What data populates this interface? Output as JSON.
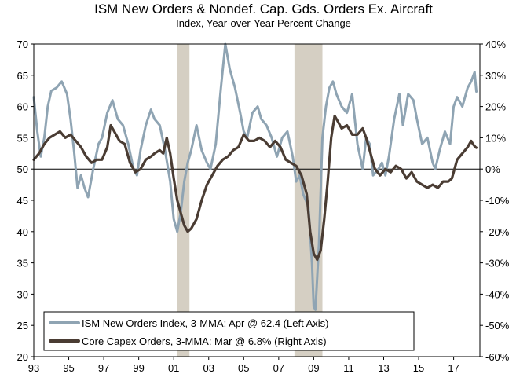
{
  "chart_data": {
    "type": "line",
    "title": "ISM New Orders & Nondef. Cap. Gds. Orders Ex. Aircraft",
    "subtitle": "Index, Year-over-Year Percent Change",
    "x_ticks": [
      "93",
      "95",
      "97",
      "99",
      "01",
      "03",
      "05",
      "07",
      "09",
      "11",
      "13",
      "15",
      "17"
    ],
    "x_range": [
      1993,
      2018.5
    ],
    "left_axis": {
      "range": [
        20,
        70
      ],
      "ticks": [
        "20",
        "25",
        "30",
        "35",
        "40",
        "45",
        "50",
        "55",
        "60",
        "65",
        "70"
      ]
    },
    "right_axis": {
      "range": [
        -60,
        40
      ],
      "ticks": [
        "-60%",
        "-50%",
        "-40%",
        "-30%",
        "-20%",
        "-10%",
        "0%",
        "10%",
        "20%",
        "30%",
        "40%"
      ]
    },
    "reference_line_left": 50,
    "recessions": [
      [
        2001.2,
        2001.9
      ],
      [
        2007.9,
        2009.5
      ]
    ],
    "legend": [
      "ISM New Orders Index, 3-MMA: Apr @ 62.4 (Left Axis)",
      "Core Capex Orders, 3-MMA: Mar @ 6.8% (Right Axis)"
    ],
    "series": [
      {
        "name": "ISM New Orders Index, 3-MMA",
        "axis": "left",
        "color": "#8fa4b3",
        "points": [
          [
            1993.0,
            61.5
          ],
          [
            1993.2,
            56
          ],
          [
            1993.4,
            52
          ],
          [
            1993.6,
            55
          ],
          [
            1993.8,
            60
          ],
          [
            1994.0,
            62.5
          ],
          [
            1994.3,
            63
          ],
          [
            1994.6,
            64
          ],
          [
            1994.9,
            62
          ],
          [
            1995.1,
            58
          ],
          [
            1995.3,
            53
          ],
          [
            1995.5,
            47
          ],
          [
            1995.7,
            49
          ],
          [
            1995.9,
            47
          ],
          [
            1996.1,
            45.5
          ],
          [
            1996.4,
            50
          ],
          [
            1996.7,
            54
          ],
          [
            1996.9,
            55
          ],
          [
            1997.2,
            59
          ],
          [
            1997.5,
            61
          ],
          [
            1997.8,
            58
          ],
          [
            1998.1,
            57
          ],
          [
            1998.4,
            54
          ],
          [
            1998.7,
            50
          ],
          [
            1998.9,
            49
          ],
          [
            1999.1,
            53
          ],
          [
            1999.4,
            57
          ],
          [
            1999.7,
            59.5
          ],
          [
            1999.9,
            58
          ],
          [
            2000.2,
            57
          ],
          [
            2000.5,
            53
          ],
          [
            2000.8,
            48
          ],
          [
            2001.0,
            42
          ],
          [
            2001.2,
            40
          ],
          [
            2001.4,
            43
          ],
          [
            2001.6,
            48
          ],
          [
            2001.8,
            51
          ],
          [
            2002.0,
            53
          ],
          [
            2002.3,
            57
          ],
          [
            2002.6,
            53
          ],
          [
            2002.9,
            51
          ],
          [
            2003.1,
            50
          ],
          [
            2003.4,
            54
          ],
          [
            2003.7,
            63
          ],
          [
            2003.95,
            70
          ],
          [
            2004.2,
            66
          ],
          [
            2004.5,
            63
          ],
          [
            2004.8,
            59
          ],
          [
            2005.0,
            56
          ],
          [
            2005.2,
            55
          ],
          [
            2005.5,
            59
          ],
          [
            2005.8,
            60
          ],
          [
            2006.0,
            58
          ],
          [
            2006.3,
            57
          ],
          [
            2006.6,
            55
          ],
          [
            2006.9,
            52
          ],
          [
            2007.2,
            55
          ],
          [
            2007.5,
            56
          ],
          [
            2007.8,
            52
          ],
          [
            2008.0,
            48
          ],
          [
            2008.2,
            49
          ],
          [
            2008.4,
            46
          ],
          [
            2008.7,
            44
          ],
          [
            2008.9,
            35
          ],
          [
            2009.0,
            28
          ],
          [
            2009.1,
            27.5
          ],
          [
            2009.3,
            38
          ],
          [
            2009.5,
            55
          ],
          [
            2009.7,
            60
          ],
          [
            2009.9,
            63
          ],
          [
            2010.1,
            64
          ],
          [
            2010.3,
            62
          ],
          [
            2010.6,
            60
          ],
          [
            2010.9,
            59
          ],
          [
            2011.2,
            62
          ],
          [
            2011.5,
            54
          ],
          [
            2011.8,
            50
          ],
          [
            2012.0,
            55
          ],
          [
            2012.2,
            54
          ],
          [
            2012.4,
            49
          ],
          [
            2012.7,
            50
          ],
          [
            2012.9,
            51
          ],
          [
            2013.1,
            49
          ],
          [
            2013.3,
            52
          ],
          [
            2013.6,
            58
          ],
          [
            2013.9,
            62
          ],
          [
            2014.1,
            57
          ],
          [
            2014.4,
            62
          ],
          [
            2014.7,
            61
          ],
          [
            2014.9,
            58
          ],
          [
            2015.2,
            54
          ],
          [
            2015.5,
            55
          ],
          [
            2015.8,
            51
          ],
          [
            2015.95,
            50
          ],
          [
            2016.2,
            53
          ],
          [
            2016.5,
            56
          ],
          [
            2016.8,
            54
          ],
          [
            2017.0,
            60
          ],
          [
            2017.2,
            61.5
          ],
          [
            2017.5,
            60
          ],
          [
            2017.8,
            63
          ],
          [
            2018.0,
            64
          ],
          [
            2018.2,
            65.5
          ],
          [
            2018.3,
            62.4
          ]
        ]
      },
      {
        "name": "Core Capex Orders, 3-MMA",
        "axis": "right",
        "color": "#4a3c33",
        "points": [
          [
            1993.0,
            3
          ],
          [
            1993.3,
            5
          ],
          [
            1993.6,
            8
          ],
          [
            1993.9,
            10
          ],
          [
            1994.2,
            11
          ],
          [
            1994.5,
            12
          ],
          [
            1994.8,
            10
          ],
          [
            1995.1,
            11
          ],
          [
            1995.4,
            9
          ],
          [
            1995.7,
            7
          ],
          [
            1996.0,
            4
          ],
          [
            1996.3,
            2
          ],
          [
            1996.6,
            3
          ],
          [
            1996.9,
            3
          ],
          [
            1997.2,
            7
          ],
          [
            1997.4,
            14
          ],
          [
            1997.6,
            12
          ],
          [
            1997.9,
            9
          ],
          [
            1998.2,
            8
          ],
          [
            1998.5,
            2
          ],
          [
            1998.8,
            -1
          ],
          [
            1999.1,
            0
          ],
          [
            1999.4,
            3
          ],
          [
            1999.7,
            4
          ],
          [
            1999.9,
            5
          ],
          [
            2000.2,
            6
          ],
          [
            2000.4,
            5
          ],
          [
            2000.6,
            10
          ],
          [
            2000.8,
            5
          ],
          [
            2001.0,
            -3
          ],
          [
            2001.2,
            -10
          ],
          [
            2001.4,
            -14
          ],
          [
            2001.6,
            -18
          ],
          [
            2001.8,
            -20
          ],
          [
            2002.0,
            -19
          ],
          [
            2002.3,
            -16
          ],
          [
            2002.6,
            -10
          ],
          [
            2002.9,
            -5
          ],
          [
            2003.2,
            -2
          ],
          [
            2003.5,
            1
          ],
          [
            2003.8,
            3
          ],
          [
            2004.1,
            4
          ],
          [
            2004.4,
            6
          ],
          [
            2004.7,
            7
          ],
          [
            2005.0,
            11
          ],
          [
            2005.3,
            9
          ],
          [
            2005.6,
            9
          ],
          [
            2005.9,
            10
          ],
          [
            2006.2,
            9
          ],
          [
            2006.5,
            7
          ],
          [
            2006.8,
            9
          ],
          [
            2007.1,
            7
          ],
          [
            2007.4,
            3
          ],
          [
            2007.7,
            2
          ],
          [
            2008.0,
            1
          ],
          [
            2008.3,
            -2
          ],
          [
            2008.6,
            -8
          ],
          [
            2008.8,
            -20
          ],
          [
            2009.0,
            -27
          ],
          [
            2009.2,
            -29
          ],
          [
            2009.4,
            -26
          ],
          [
            2009.6,
            -16
          ],
          [
            2009.8,
            -4
          ],
          [
            2010.0,
            10
          ],
          [
            2010.2,
            17
          ],
          [
            2010.4,
            15
          ],
          [
            2010.6,
            13
          ],
          [
            2010.9,
            14
          ],
          [
            2011.2,
            11
          ],
          [
            2011.5,
            11
          ],
          [
            2011.8,
            13
          ],
          [
            2012.0,
            10
          ],
          [
            2012.2,
            6
          ],
          [
            2012.5,
            0
          ],
          [
            2012.8,
            -2
          ],
          [
            2013.1,
            0
          ],
          [
            2013.4,
            -1
          ],
          [
            2013.7,
            1
          ],
          [
            2014.0,
            0
          ],
          [
            2014.3,
            -3
          ],
          [
            2014.6,
            -1
          ],
          [
            2014.9,
            -4
          ],
          [
            2015.2,
            -5
          ],
          [
            2015.5,
            -6
          ],
          [
            2015.8,
            -5
          ],
          [
            2016.1,
            -6
          ],
          [
            2016.4,
            -4
          ],
          [
            2016.7,
            -4
          ],
          [
            2016.9,
            -3
          ],
          [
            2017.2,
            3
          ],
          [
            2017.5,
            5
          ],
          [
            2017.8,
            7
          ],
          [
            2018.0,
            9
          ],
          [
            2018.1,
            8
          ],
          [
            2018.25,
            7
          ],
          [
            2018.3,
            6.8
          ]
        ]
      }
    ]
  }
}
